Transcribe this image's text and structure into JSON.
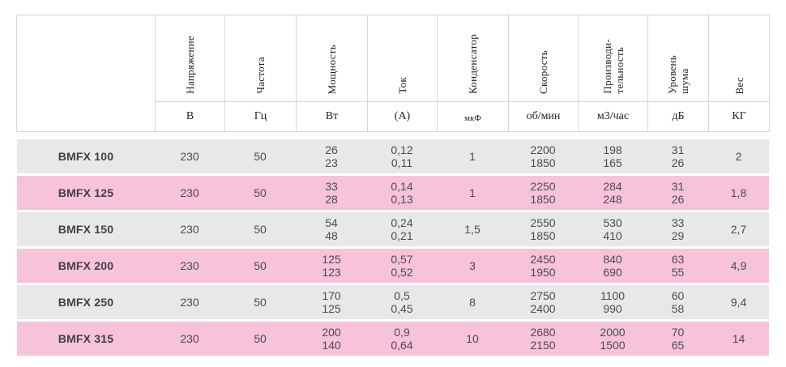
{
  "colors": {
    "row_gray": "#e8e8e8",
    "row_pink": "#f6c3d8",
    "border": "#d6d6d6",
    "header_text": "#222222",
    "data_text": "#4f4a4e"
  },
  "table": {
    "columns": [
      {
        "name": "Напряжение",
        "unit": "В"
      },
      {
        "name": "Частота",
        "unit": "Гц"
      },
      {
        "name": "Мощность",
        "unit": "Вт"
      },
      {
        "name": "Ток",
        "unit": "(А)"
      },
      {
        "name": "Конденсатор",
        "unit": "мкФ"
      },
      {
        "name": "Скорость",
        "unit": "об/мин"
      },
      {
        "name": "Производи-\nтельность",
        "unit": "м3/час"
      },
      {
        "name": "Уровень\nшума",
        "unit": "дБ"
      },
      {
        "name": "Вес",
        "unit": "КГ"
      }
    ],
    "rows": [
      {
        "model": "BMFX 100",
        "values": [
          "230",
          "50",
          "26\n23",
          "0,12\n0,11",
          "1",
          "2200\n1850",
          "198\n165",
          "31\n26",
          "2"
        ]
      },
      {
        "model": "BMFX 125",
        "values": [
          "230",
          "50",
          "33\n28",
          "0,14\n0,13",
          "1",
          "2250\n1850",
          "284\n248",
          "31\n26",
          "1,8"
        ]
      },
      {
        "model": "BMFX 150",
        "values": [
          "230",
          "50",
          "54\n48",
          "0,24\n0,21",
          "1,5",
          "2550\n1850",
          "530\n410",
          "33\n29",
          "2,7"
        ]
      },
      {
        "model": "BMFX 200",
        "values": [
          "230",
          "50",
          "125\n123",
          "0,57\n0,52",
          "3",
          "2450\n1950",
          "840\n690",
          "63\n55",
          "4,9"
        ]
      },
      {
        "model": "BMFX 250",
        "values": [
          "230",
          "50",
          "170\n125",
          "0,5\n0,45",
          "8",
          "2750\n2400",
          "1100\n990",
          "60\n58",
          "9,4"
        ]
      },
      {
        "model": "BMFX 315",
        "values": [
          "230",
          "50",
          "200\n140",
          "0,9\n0,64",
          "10",
          "2680\n2150",
          "2000\n1500",
          "70\n65",
          "14"
        ]
      }
    ]
  }
}
